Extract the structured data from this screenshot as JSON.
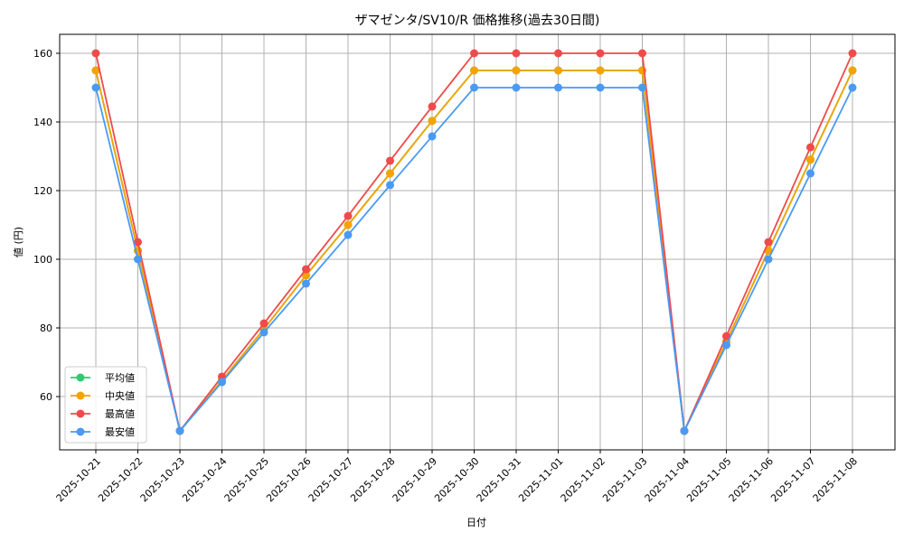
{
  "chart_data": {
    "type": "line",
    "title": "ザマゼンタ/SV10/R 価格推移(過去30日間)",
    "xlabel": "日付",
    "ylabel": "値 (円)",
    "ylim": [
      45,
      165
    ],
    "yticks": [
      60,
      80,
      100,
      120,
      140,
      160
    ],
    "grid": true,
    "legend_position": "lower left",
    "categories": [
      "2025-10-21",
      "2025-10-22",
      "2025-10-23",
      "2025-10-24",
      "2025-10-25",
      "2025-10-26",
      "2025-10-27",
      "2025-10-28",
      "2025-10-29",
      "2025-10-30",
      "2025-10-31",
      "2025-11-01",
      "2025-11-02",
      "2025-11-03",
      "2025-11-04",
      "2025-11-05",
      "2025-11-06",
      "2025-11-07",
      "2025-11-08"
    ],
    "series": [
      {
        "name": "平均値",
        "color": "#2ecc71",
        "values": [
          155,
          102.5,
          50,
          64.7,
          79.7,
          95.3,
          110,
          125,
          140.3,
          155,
          155,
          155,
          155,
          155,
          50,
          76,
          102.5,
          129,
          155
        ]
      },
      {
        "name": "中央値",
        "color": "#f5a300",
        "values": [
          155,
          102.5,
          50,
          64.7,
          79.7,
          95.3,
          110,
          125,
          140.3,
          155,
          155,
          155,
          155,
          155,
          50,
          76,
          102.5,
          129,
          155
        ]
      },
      {
        "name": "最高値",
        "color": "#f04a4a",
        "values": [
          160,
          105,
          50,
          65.8,
          81.3,
          97.1,
          112.6,
          128.7,
          144.5,
          160,
          160,
          160,
          160,
          160,
          50,
          77.6,
          105,
          132.6,
          160
        ]
      },
      {
        "name": "最安値",
        "color": "#4a9af5",
        "values": [
          150,
          100,
          50,
          64.2,
          78.7,
          92.9,
          107.1,
          121.6,
          135.8,
          150,
          150,
          150,
          150,
          150,
          50,
          75,
          100,
          125,
          150
        ]
      }
    ]
  }
}
